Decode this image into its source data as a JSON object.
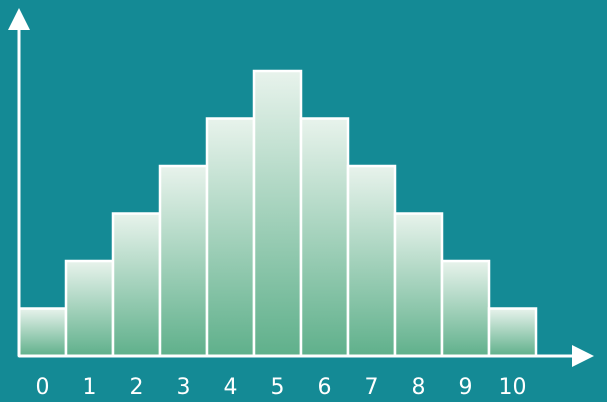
{
  "chart_data": {
    "type": "bar",
    "title": "",
    "xlabel": "",
    "ylabel": "",
    "categories": [
      "0",
      "1",
      "2",
      "3",
      "4",
      "5",
      "6",
      "7",
      "8",
      "9",
      "10"
    ],
    "values": [
      1,
      2,
      3,
      4,
      5,
      6,
      5,
      4,
      3,
      2,
      1
    ],
    "ylim": [
      0,
      6
    ],
    "grid": false,
    "legend": "none",
    "colors": {
      "background": "#148a95",
      "axis": "#ffffff",
      "bar_top": "#e8f3ec",
      "bar_bottom": "#5fb08b",
      "bar_outline": "#ffffff",
      "tick_text": "#ffffff"
    }
  }
}
